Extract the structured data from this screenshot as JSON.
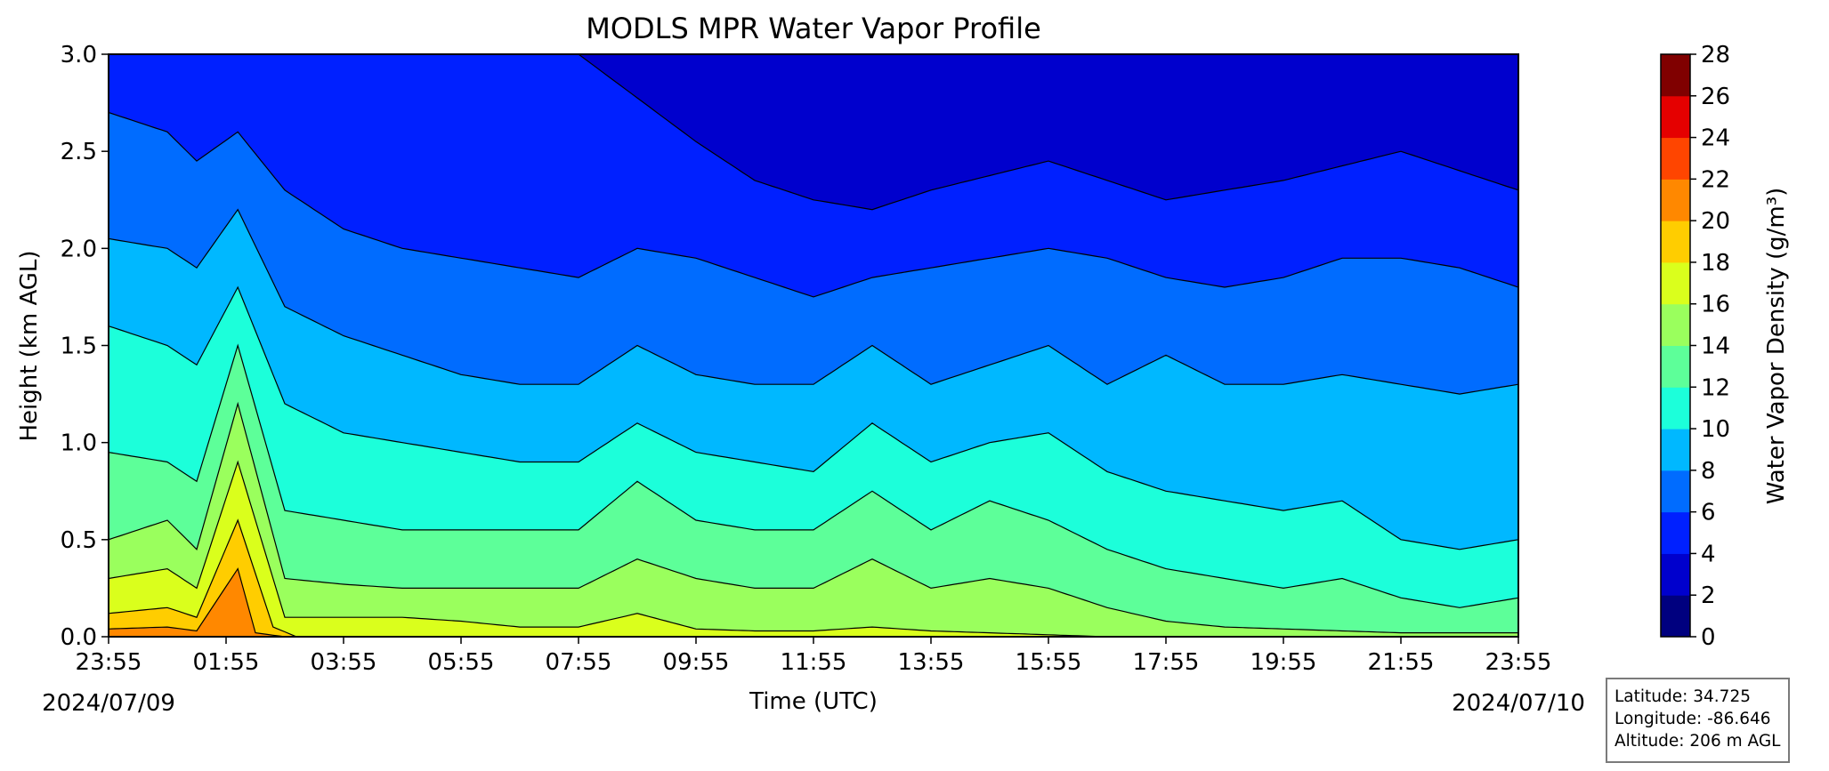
{
  "chart_data": {
    "type": "contour",
    "title": "MODLS MPR Water Vapor Profile",
    "xlabel": "Time (UTC)",
    "ylabel": "Height (km AGL)",
    "x_ticks": [
      "23:55",
      "01:55",
      "03:55",
      "05:55",
      "07:55",
      "09:55",
      "11:55",
      "13:55",
      "15:55",
      "17:55",
      "19:55",
      "21:55",
      "23:55"
    ],
    "x_start_date": "2024/07/09",
    "x_end_date": "2024/07/10",
    "y_ticks": [
      "0.0",
      "0.5",
      "1.0",
      "1.5",
      "2.0",
      "2.5",
      "3.0"
    ],
    "ylim": [
      0,
      3.0
    ],
    "colorbar": {
      "label": "Water Vapor Density (g/m³)",
      "ticks": [
        "0",
        "2",
        "4",
        "6",
        "8",
        "10",
        "12",
        "14",
        "16",
        "18",
        "20",
        "22",
        "24",
        "26",
        "28"
      ],
      "levels": [
        0,
        2,
        4,
        6,
        8,
        10,
        12,
        14,
        16,
        18,
        20,
        22,
        24,
        26,
        28
      ],
      "colors": [
        "#00007f",
        "#0000cd",
        "#0020ff",
        "#006cff",
        "#00b8ff",
        "#1cffda",
        "#5dff99",
        "#9aff5d",
        "#daff1c",
        "#ffcd00",
        "#ff8800",
        "#ff4500",
        "#e50000",
        "#800000"
      ]
    },
    "contour_levels": [
      {
        "level": 4,
        "hours": [
          0,
          1.5,
          2.2,
          4,
          6,
          8,
          10,
          11,
          12,
          13,
          14,
          16,
          18,
          20,
          22,
          24
        ],
        "heights": [
          3.2,
          3.2,
          3.2,
          3.2,
          3.1,
          3.0,
          2.55,
          2.35,
          2.25,
          2.2,
          2.3,
          2.45,
          2.25,
          2.35,
          2.5,
          2.3
        ]
      },
      {
        "level": 6,
        "hours": [
          0,
          1,
          1.5,
          2.2,
          3,
          4,
          5,
          6,
          7,
          8,
          9,
          10,
          11,
          12,
          13,
          14,
          15,
          16,
          17,
          18,
          19,
          20,
          21,
          22,
          23,
          24
        ],
        "heights": [
          2.7,
          2.6,
          2.45,
          2.6,
          2.3,
          2.1,
          2.0,
          1.95,
          1.9,
          1.85,
          2.0,
          1.95,
          1.85,
          1.75,
          1.85,
          1.9,
          1.95,
          2.0,
          1.95,
          1.85,
          1.8,
          1.85,
          1.95,
          1.95,
          1.9,
          1.8
        ]
      },
      {
        "level": 8,
        "hours": [
          0,
          1,
          1.5,
          2.2,
          3,
          4,
          5,
          6,
          7,
          8,
          9,
          10,
          11,
          12,
          13,
          14,
          15,
          16,
          17,
          18,
          19,
          20,
          21,
          22,
          23,
          24
        ],
        "heights": [
          2.05,
          2.0,
          1.9,
          2.2,
          1.7,
          1.55,
          1.45,
          1.35,
          1.3,
          1.3,
          1.5,
          1.35,
          1.3,
          1.3,
          1.5,
          1.3,
          1.4,
          1.5,
          1.3,
          1.45,
          1.3,
          1.3,
          1.35,
          1.3,
          1.25,
          1.3
        ]
      },
      {
        "level": 10,
        "hours": [
          0,
          1,
          1.5,
          2.2,
          3,
          4,
          5,
          6,
          7,
          8,
          9,
          10,
          11,
          12,
          13,
          14,
          15,
          16,
          17,
          18,
          19,
          20,
          21,
          22,
          23,
          24
        ],
        "heights": [
          1.6,
          1.5,
          1.4,
          1.8,
          1.2,
          1.05,
          1.0,
          0.95,
          0.9,
          0.9,
          1.1,
          0.95,
          0.9,
          0.85,
          1.1,
          0.9,
          1.0,
          1.05,
          0.85,
          0.75,
          0.7,
          0.65,
          0.7,
          0.5,
          0.45,
          0.5
        ]
      },
      {
        "level": 12,
        "hours": [
          0,
          1,
          1.5,
          2.2,
          3,
          4,
          5,
          6,
          7,
          8,
          9,
          10,
          11,
          12,
          13,
          14,
          15,
          16,
          17,
          18,
          19,
          20,
          21,
          22,
          23,
          24
        ],
        "heights": [
          0.95,
          0.9,
          0.8,
          1.5,
          0.65,
          0.6,
          0.55,
          0.55,
          0.55,
          0.55,
          0.8,
          0.6,
          0.55,
          0.55,
          0.75,
          0.55,
          0.7,
          0.6,
          0.45,
          0.35,
          0.3,
          0.25,
          0.3,
          0.2,
          0.15,
          0.2
        ]
      },
      {
        "level": 14,
        "hours": [
          0,
          1,
          1.5,
          2.2,
          3,
          4,
          5,
          6,
          7,
          8,
          9,
          10,
          11,
          12,
          13,
          14,
          15,
          16,
          17,
          18,
          19,
          20,
          21,
          22,
          23,
          24
        ],
        "heights": [
          0.5,
          0.6,
          0.45,
          1.2,
          0.3,
          0.27,
          0.25,
          0.25,
          0.25,
          0.25,
          0.4,
          0.3,
          0.25,
          0.25,
          0.4,
          0.25,
          0.3,
          0.25,
          0.15,
          0.08,
          0.05,
          0.04,
          0.03,
          0.02,
          0.02,
          0.02
        ]
      },
      {
        "level": 16,
        "hours": [
          0,
          1,
          1.5,
          2.2,
          3,
          4,
          5,
          6,
          7,
          8,
          9,
          10,
          11,
          12,
          13,
          14,
          15,
          16,
          17,
          18,
          19,
          24
        ],
        "heights": [
          0.3,
          0.35,
          0.25,
          0.9,
          0.1,
          0.1,
          0.1,
          0.08,
          0.05,
          0.05,
          0.12,
          0.04,
          0.03,
          0.03,
          0.05,
          0.03,
          0.02,
          0.01,
          0.0,
          0.0,
          0.0,
          0.0
        ]
      },
      {
        "level": 18,
        "hours": [
          0,
          1,
          1.5,
          2.2,
          2.8,
          3.2,
          24
        ],
        "heights": [
          0.12,
          0.15,
          0.1,
          0.6,
          0.05,
          0.0,
          0.0
        ]
      },
      {
        "level": 20,
        "hours": [
          0,
          1,
          1.5,
          2.2,
          2.5,
          3.0,
          24
        ],
        "heights": [
          0.04,
          0.05,
          0.03,
          0.35,
          0.02,
          0.0,
          0.0
        ]
      }
    ],
    "info": {
      "latitude": "Latitude: 34.725",
      "longitude": "Longitude: -86.646",
      "altitude": "Altitude: 206 m AGL"
    }
  }
}
